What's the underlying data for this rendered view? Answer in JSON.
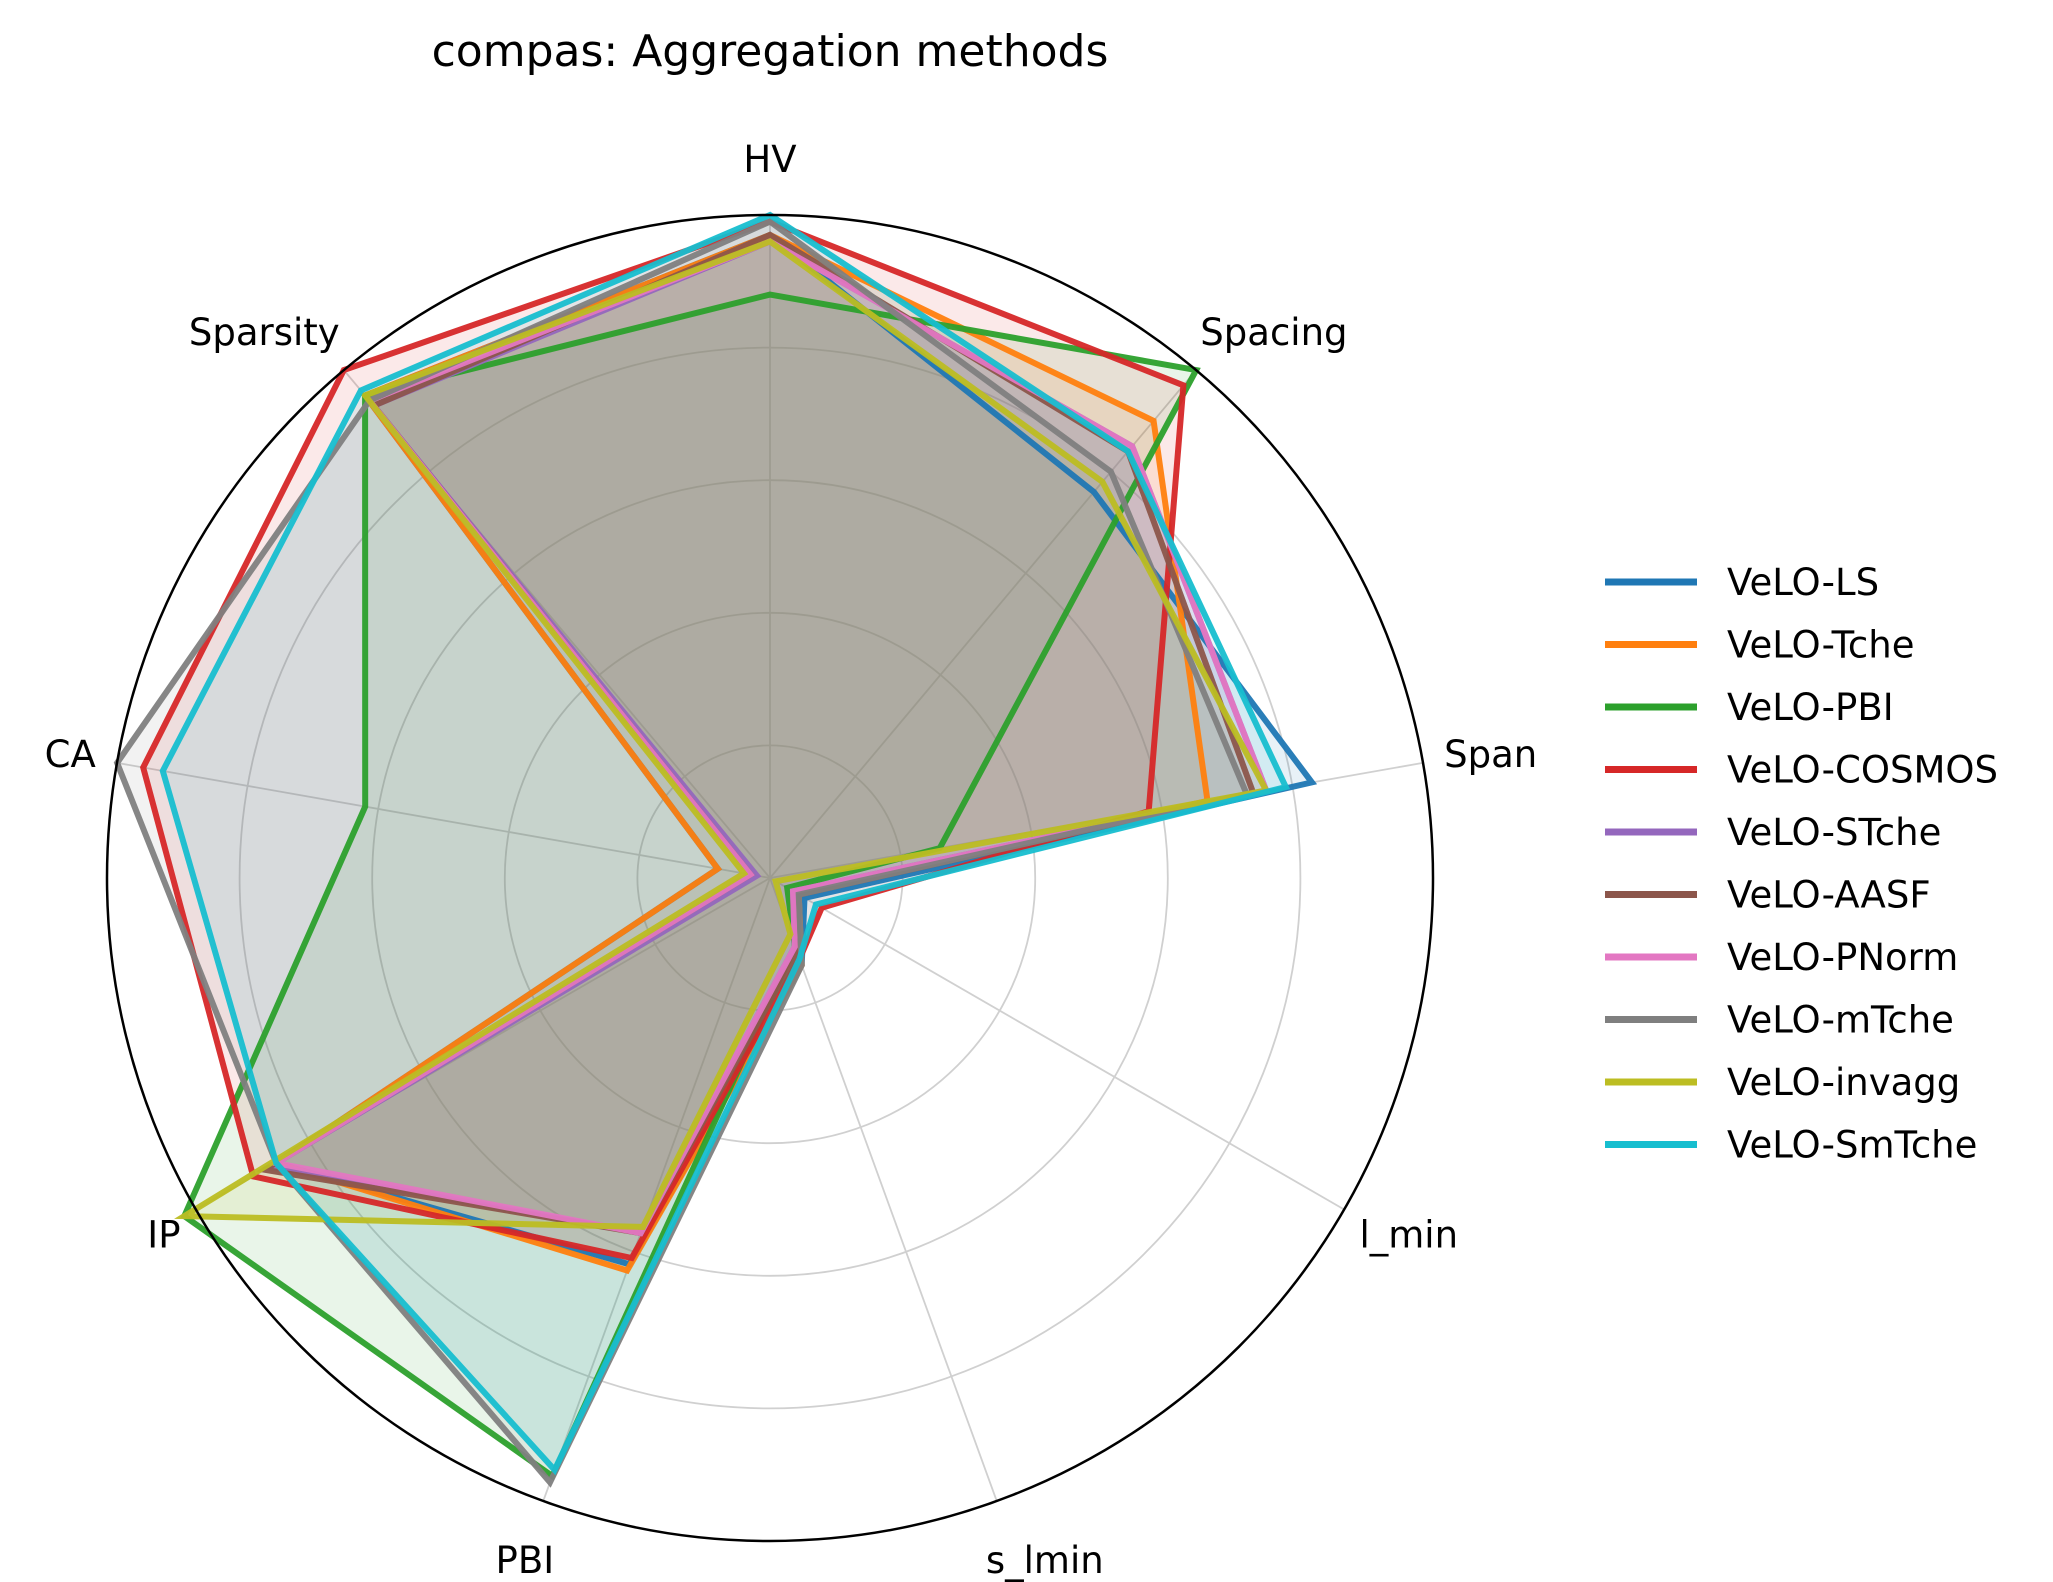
{
  "chart_data": {
    "type": "radar",
    "title": "compas: Aggregation methods",
    "axes": [
      "HV",
      "Spacing",
      "Span",
      "l_min",
      "s_lmin",
      "PBI",
      "IP",
      "CA",
      "Sparsity"
    ],
    "rlim": [
      0,
      1
    ],
    "radial_gridlines": [
      0.2,
      0.4,
      0.6,
      0.8,
      1.0
    ],
    "grid": true,
    "legend_position": "right",
    "series": [
      {
        "name": "VeLO-LS",
        "color": "#1f77b4",
        "values": [
          0.97,
          0.76,
          0.83,
          0.06,
          0.14,
          0.62,
          0.86,
          0.08,
          0.95
        ]
      },
      {
        "name": "VeLO-Tche",
        "color": "#ff7f0e",
        "values": [
          0.97,
          0.9,
          0.67,
          0.05,
          0.14,
          0.63,
          0.86,
          0.08,
          0.95
        ]
      },
      {
        "name": "VeLO-PBI",
        "color": "#2ca02c",
        "values": [
          0.88,
          1.0,
          0.26,
          0.03,
          0.11,
          0.96,
          1.02,
          0.62,
          0.95
        ]
      },
      {
        "name": "VeLO-COSMOS",
        "color": "#d62728",
        "values": [
          0.99,
          0.97,
          0.58,
          0.09,
          0.13,
          0.61,
          0.9,
          0.96,
          1.0
        ]
      },
      {
        "name": "VeLO-STche",
        "color": "#9467bd",
        "values": [
          0.96,
          0.85,
          0.76,
          0.04,
          0.11,
          0.57,
          0.87,
          0.02,
          0.93
        ]
      },
      {
        "name": "VeLO-AASF",
        "color": "#8c564b",
        "values": [
          0.97,
          0.84,
          0.74,
          0.05,
          0.12,
          0.57,
          0.88,
          0.03,
          0.93
        ]
      },
      {
        "name": "VeLO-PNorm",
        "color": "#e377c2",
        "values": [
          0.96,
          0.85,
          0.76,
          0.04,
          0.11,
          0.57,
          0.86,
          0.03,
          0.94
        ]
      },
      {
        "name": "VeLO-mTche",
        "color": "#7f7f7f",
        "values": [
          0.99,
          0.8,
          0.73,
          0.05,
          0.14,
          0.97,
          0.86,
          1.0,
          0.94
        ]
      },
      {
        "name": "VeLO-invagg",
        "color": "#bcbd22",
        "values": [
          0.96,
          0.78,
          0.76,
          0.01,
          0.09,
          0.56,
          1.02,
          0.04,
          0.95
        ]
      },
      {
        "name": "VeLO-SmTche",
        "color": "#17becf",
        "values": [
          1.0,
          0.84,
          0.79,
          0.08,
          0.13,
          0.95,
          0.86,
          0.93,
          0.96
        ]
      }
    ]
  }
}
